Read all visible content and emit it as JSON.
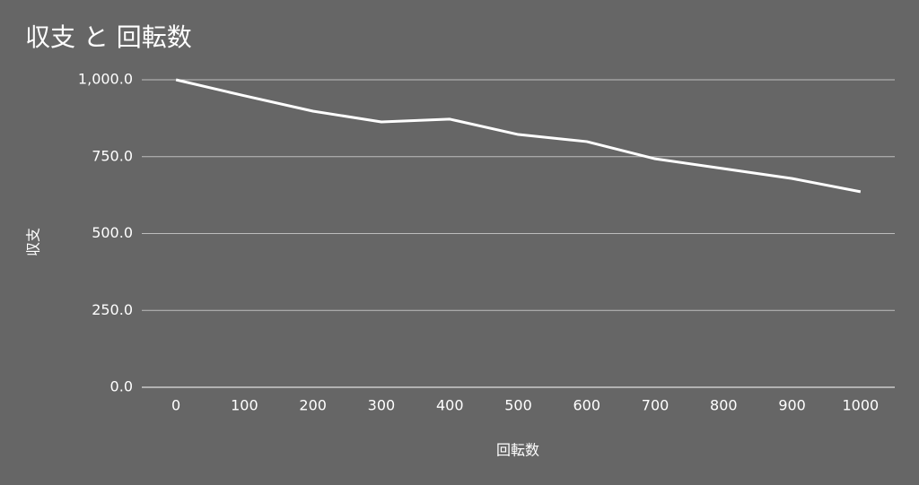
{
  "chart_data": {
    "type": "line",
    "title": "収支 と 回転数",
    "x_label": "回転数",
    "y_label": "収支",
    "categories": [
      "0",
      "100",
      "200",
      "300",
      "400",
      "500",
      "600",
      "700",
      "800",
      "900",
      "1000"
    ],
    "series": [
      {
        "name": "収支",
        "color": "#ffffff",
        "values": [
          1000,
          948,
          898,
          863,
          872,
          822,
          799,
          743,
          711,
          679,
          636
        ]
      }
    ],
    "ylim": [
      0,
      1000
    ],
    "yticks": [
      {
        "value": 0,
        "label": "0.0"
      },
      {
        "value": 250,
        "label": "250.0"
      },
      {
        "value": 500,
        "label": "500.0"
      },
      {
        "value": 750,
        "label": "750.0"
      },
      {
        "value": 1000,
        "label": "1,000.0"
      }
    ],
    "grid": true
  }
}
